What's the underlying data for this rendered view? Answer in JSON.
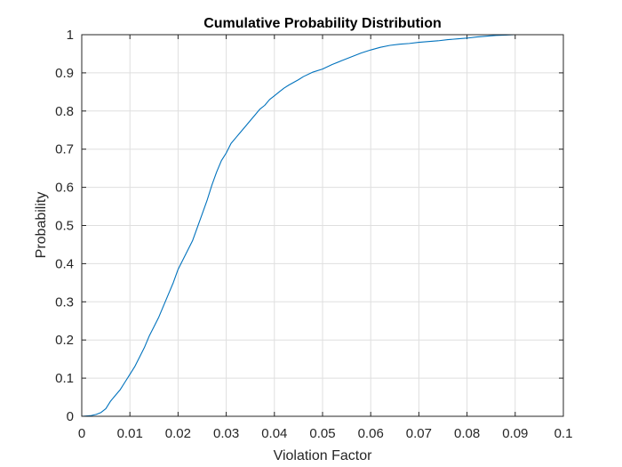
{
  "chart_data": {
    "type": "line",
    "title": "Cumulative Probability Distribution",
    "xlabel": "Violation Factor",
    "ylabel": "Probability",
    "xlim": [
      0,
      0.1
    ],
    "ylim": [
      0,
      1
    ],
    "x_ticks": [
      "0",
      "0.01",
      "0.02",
      "0.03",
      "0.04",
      "0.05",
      "0.06",
      "0.07",
      "0.08",
      "0.09",
      "0.1"
    ],
    "y_ticks": [
      "0",
      "0.1",
      "0.2",
      "0.3",
      "0.4",
      "0.5",
      "0.6",
      "0.7",
      "0.8",
      "0.9",
      "1"
    ],
    "grid": true,
    "line_color": "#0072BD",
    "series": [
      {
        "x": [
          0,
          0.002,
          0.003,
          0.004,
          0.005,
          0.006,
          0.007,
          0.008,
          0.009,
          0.01,
          0.011,
          0.012,
          0.013,
          0.014,
          0.015,
          0.016,
          0.017,
          0.018,
          0.019,
          0.02,
          0.021,
          0.022,
          0.023,
          0.024,
          0.025,
          0.026,
          0.027,
          0.028,
          0.029,
          0.03,
          0.031,
          0.032,
          0.033,
          0.034,
          0.035,
          0.036,
          0.037,
          0.038,
          0.039,
          0.04,
          0.041,
          0.042,
          0.043,
          0.044,
          0.045,
          0.046,
          0.048,
          0.05,
          0.052,
          0.054,
          0.056,
          0.058,
          0.06,
          0.062,
          0.064,
          0.066,
          0.068,
          0.07,
          0.072,
          0.074,
          0.076,
          0.078,
          0.08,
          0.082,
          0.084,
          0.086,
          0.088,
          0.09,
          0.095,
          0.1
        ],
        "y": [
          0,
          0.002,
          0.005,
          0.01,
          0.02,
          0.04,
          0.055,
          0.07,
          0.09,
          0.11,
          0.13,
          0.155,
          0.18,
          0.21,
          0.235,
          0.26,
          0.29,
          0.32,
          0.35,
          0.385,
          0.41,
          0.435,
          0.46,
          0.495,
          0.53,
          0.565,
          0.605,
          0.64,
          0.67,
          0.69,
          0.715,
          0.73,
          0.745,
          0.76,
          0.775,
          0.79,
          0.805,
          0.815,
          0.83,
          0.84,
          0.85,
          0.86,
          0.868,
          0.875,
          0.882,
          0.89,
          0.902,
          0.91,
          0.922,
          0.932,
          0.942,
          0.952,
          0.96,
          0.967,
          0.972,
          0.975,
          0.977,
          0.98,
          0.982,
          0.984,
          0.987,
          0.989,
          0.991,
          0.994,
          0.996,
          0.998,
          0.999,
          1.0,
          1.0,
          1.0
        ]
      }
    ]
  }
}
